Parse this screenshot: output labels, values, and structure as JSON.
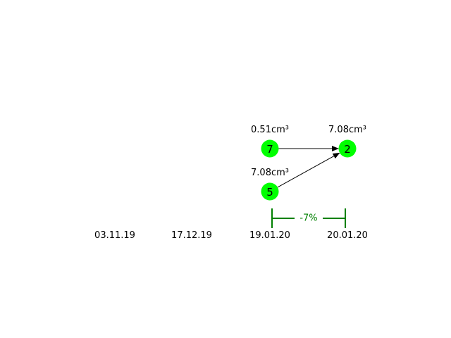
{
  "timeline": {
    "dates": [
      "03.11.19",
      "17.12.19",
      "19.01.20",
      "20.01.20"
    ]
  },
  "nodes": [
    {
      "id": "7",
      "volume": "0.51cm³",
      "date_index": 2,
      "row": 0
    },
    {
      "id": "2",
      "volume": "7.08cm³",
      "date_index": 3,
      "row": 0
    },
    {
      "id": "5",
      "volume": "7.08cm³",
      "date_index": 2,
      "row": 1
    }
  ],
  "edges": [
    {
      "from": "7",
      "to": "2"
    },
    {
      "from": "5",
      "to": "2"
    }
  ],
  "change": {
    "label": "-7%",
    "from_index": 2,
    "to_index": 3,
    "color": "#008000"
  },
  "colors": {
    "node_fill": "#00ff00",
    "edge": "#000000",
    "text": "#000000"
  }
}
